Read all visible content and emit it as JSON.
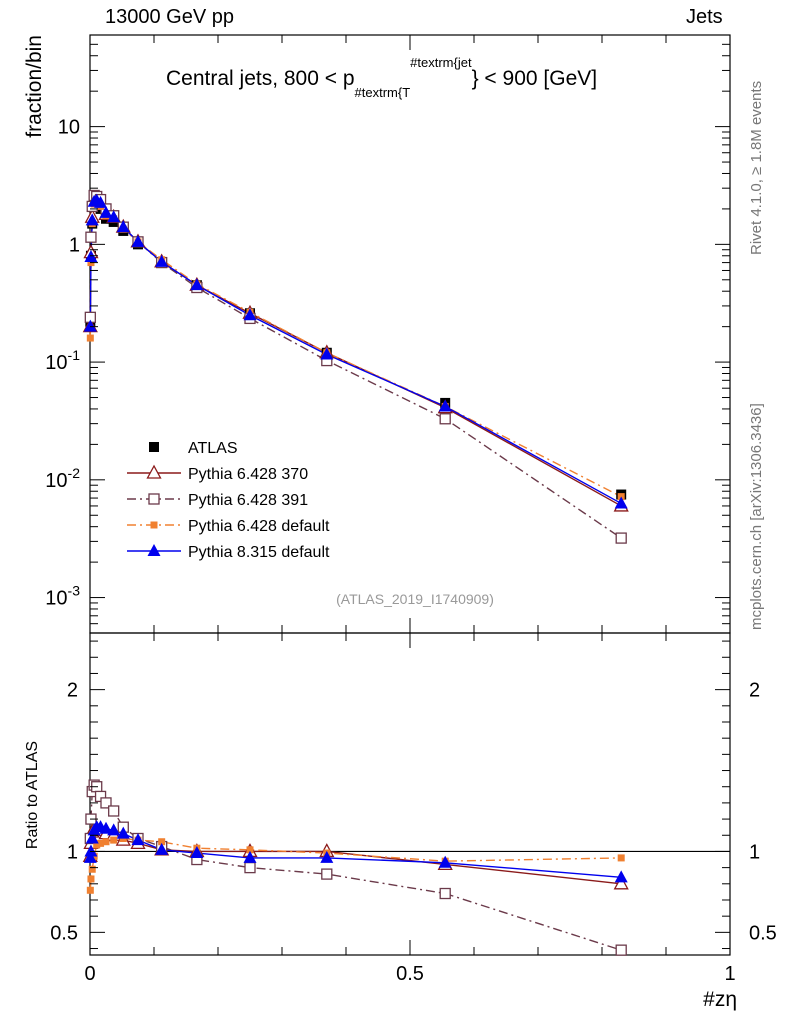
{
  "header": {
    "left": "13000 GeV pp",
    "right": "Jets"
  },
  "side_text": {
    "rivet": "Rivet 4.1.0, ≥ 1.8M events",
    "mcplots": "mcplots.cern.ch [arXiv:1306.3436]"
  },
  "chart_data": {
    "type": "line",
    "title_parts": {
      "a": "Central jets, 800 < p",
      "sub": "#textrm{T",
      "sup": "#textrm{jet",
      "b": "} < 900 [GeV]"
    },
    "analysis_id": "(ATLAS_2019_I1740909)",
    "xlabel": "#zη",
    "ylabel_main": "fraction/bin",
    "ylabel_ratio": "Ratio to ATLAS",
    "xlim": [
      0,
      1
    ],
    "ylim_main": [
      0.0005,
      60
    ],
    "ylim_ratio": [
      0.36,
      2.35
    ],
    "x_ticks": [
      "0",
      "0.5",
      "1"
    ],
    "y_ticks_main": [
      {
        "base": "10",
        "exp": "-3",
        "value": 0.001
      },
      {
        "base": "10",
        "exp": "-2",
        "value": 0.01
      },
      {
        "base": "10",
        "exp": "-1",
        "value": 0.1
      },
      {
        "base": "1",
        "exp": "",
        "value": 1
      },
      {
        "base": "10",
        "exp": "",
        "value": 10
      }
    ],
    "y_ticks_ratio": [
      {
        "label": "0.5",
        "value": 0.5
      },
      {
        "label": "1",
        "value": 1
      },
      {
        "label": "2",
        "value": 2
      }
    ],
    "x": [
      0.0005,
      0.0015,
      0.0035,
      0.0065,
      0.0105,
      0.0165,
      0.025,
      0.037,
      0.052,
      0.075,
      0.112,
      0.167,
      0.25,
      0.37,
      0.555,
      0.83
    ],
    "series": [
      {
        "name": "ATLAS",
        "color": "#000000",
        "marker": "square-filled",
        "line": "none",
        "values": [
          0.22,
          0.8,
          1.5,
          2.1,
          2.1,
          2.0,
          1.65,
          1.55,
          1.3,
          1.0,
          0.7,
          0.45,
          0.26,
          0.12,
          0.045,
          0.0075
        ]
      },
      {
        "name": "Pythia 6.428 370",
        "color": "#8b1a1a",
        "marker": "triangle-open",
        "line": "solid",
        "values": [
          0.2,
          0.85,
          1.7,
          2.4,
          2.4,
          2.25,
          1.8,
          1.7,
          1.4,
          1.05,
          0.71,
          0.45,
          0.26,
          0.12,
          0.041,
          0.006
        ]
      },
      {
        "name": "Pythia 6.428 391",
        "color": "#6b3a4a",
        "marker": "square-open",
        "line": "dashdot",
        "values": [
          0.24,
          1.15,
          2.1,
          2.6,
          2.55,
          2.4,
          2.0,
          1.75,
          1.4,
          1.05,
          0.7,
          0.43,
          0.235,
          0.103,
          0.033,
          0.0032
        ]
      },
      {
        "name": "Pythia 6.428 default",
        "color": "#f08030",
        "marker": "square-filled-small",
        "line": "dashdot",
        "values": [
          0.16,
          0.7,
          1.5,
          2.2,
          2.25,
          2.1,
          1.75,
          1.65,
          1.35,
          1.05,
          0.74,
          0.46,
          0.265,
          0.12,
          0.042,
          0.0072
        ]
      },
      {
        "name": "Pythia 8.315 default",
        "color": "#0000ee",
        "marker": "triangle-filled",
        "line": "solid",
        "values": [
          0.2,
          0.78,
          1.6,
          2.3,
          2.35,
          2.25,
          1.85,
          1.7,
          1.4,
          1.05,
          0.71,
          0.45,
          0.25,
          0.116,
          0.042,
          0.0063
        ]
      }
    ],
    "ratio_series": [
      {
        "name": "Pythia 6.428 370",
        "values": [
          0.97,
          1.05,
          1.12,
          1.14,
          1.14,
          1.13,
          1.11,
          1.1,
          1.07,
          1.05,
          1.01,
          1.0,
          1.0,
          1.0,
          0.92,
          0.8
        ]
      },
      {
        "name": "Pythia 6.428 391",
        "values": [
          1.08,
          1.2,
          1.37,
          1.41,
          1.4,
          1.34,
          1.3,
          1.25,
          1.15,
          1.08,
          1.03,
          0.95,
          0.9,
          0.86,
          0.74,
          0.39
        ]
      },
      {
        "name": "Pythia 6.428 default",
        "values": [
          0.76,
          0.83,
          0.89,
          0.97,
          1.04,
          1.05,
          1.06,
          1.07,
          1.08,
          1.07,
          1.06,
          1.02,
          1.01,
          0.99,
          0.94,
          0.96
        ]
      },
      {
        "name": "Pythia 8.315 default",
        "values": [
          0.96,
          1.0,
          1.08,
          1.13,
          1.15,
          1.15,
          1.14,
          1.13,
          1.11,
          1.07,
          1.01,
          0.99,
          0.96,
          0.96,
          0.93,
          0.84
        ]
      }
    ],
    "legend_placement": "center-left"
  }
}
